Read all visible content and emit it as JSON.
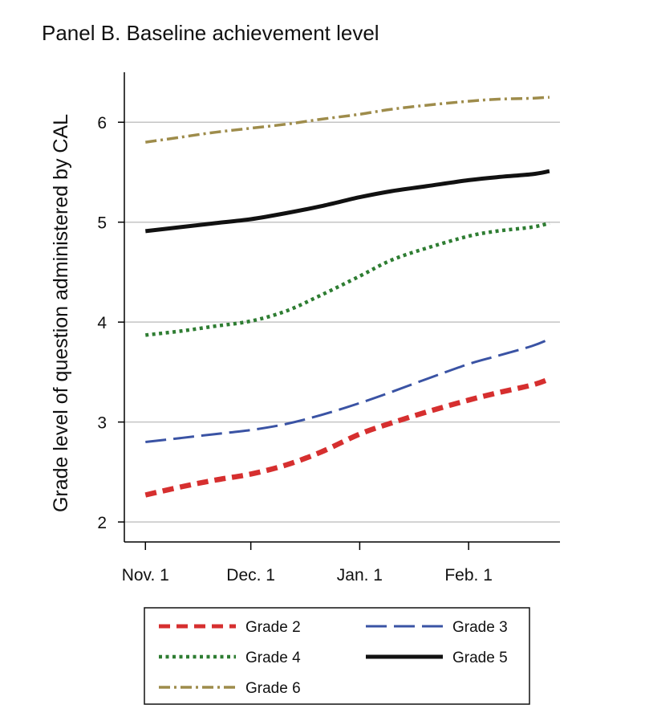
{
  "chart_data": {
    "type": "line",
    "title": "Panel B. Baseline achievement level",
    "xlabel": "",
    "ylabel": "Grade level of question administered by CAL",
    "x_ticks": [
      "Nov. 1",
      "Dec. 1",
      "Jan. 1",
      "Feb. 1"
    ],
    "x_tick_days": [
      0,
      30,
      61,
      92
    ],
    "xlim_days": [
      -6,
      118
    ],
    "y_ticks": [
      2,
      3,
      4,
      5,
      6
    ],
    "ylim": [
      1.8,
      6.5
    ],
    "grid": true,
    "legend_position": "bottom",
    "series": [
      {
        "name": "Grade 2",
        "color": "#d62f2f",
        "style": "dashed",
        "days": [
          0,
          10,
          20,
          30,
          40,
          50,
          61,
          70,
          80,
          92,
          100,
          110,
          115
        ],
        "values": [
          2.27,
          2.35,
          2.42,
          2.48,
          2.57,
          2.7,
          2.88,
          2.99,
          3.1,
          3.22,
          3.29,
          3.37,
          3.43
        ]
      },
      {
        "name": "Grade 3",
        "color": "#3a53a4",
        "style": "longdash",
        "days": [
          0,
          10,
          20,
          30,
          40,
          50,
          61,
          70,
          80,
          92,
          100,
          110,
          115
        ],
        "values": [
          2.8,
          2.84,
          2.88,
          2.92,
          2.98,
          3.07,
          3.19,
          3.3,
          3.43,
          3.58,
          3.66,
          3.76,
          3.83
        ]
      },
      {
        "name": "Grade 4",
        "color": "#2e7d32",
        "style": "dotted",
        "days": [
          0,
          10,
          20,
          30,
          40,
          50,
          61,
          70,
          80,
          92,
          100,
          110,
          115
        ],
        "values": [
          3.87,
          3.91,
          3.96,
          4.01,
          4.11,
          4.27,
          4.46,
          4.62,
          4.74,
          4.86,
          4.91,
          4.95,
          4.99
        ]
      },
      {
        "name": "Grade 5",
        "color": "#111111",
        "style": "solid",
        "days": [
          0,
          10,
          20,
          30,
          40,
          50,
          61,
          70,
          80,
          92,
          100,
          110,
          115
        ],
        "values": [
          4.91,
          4.95,
          4.99,
          5.03,
          5.09,
          5.16,
          5.25,
          5.31,
          5.36,
          5.42,
          5.45,
          5.48,
          5.51
        ]
      },
      {
        "name": "Grade 6",
        "color": "#9e8c4b",
        "style": "dashdot",
        "days": [
          0,
          10,
          20,
          30,
          40,
          50,
          61,
          70,
          80,
          92,
          100,
          110,
          115
        ],
        "values": [
          5.8,
          5.85,
          5.9,
          5.94,
          5.98,
          6.03,
          6.08,
          6.13,
          6.17,
          6.21,
          6.23,
          6.24,
          6.25
        ]
      }
    ]
  }
}
